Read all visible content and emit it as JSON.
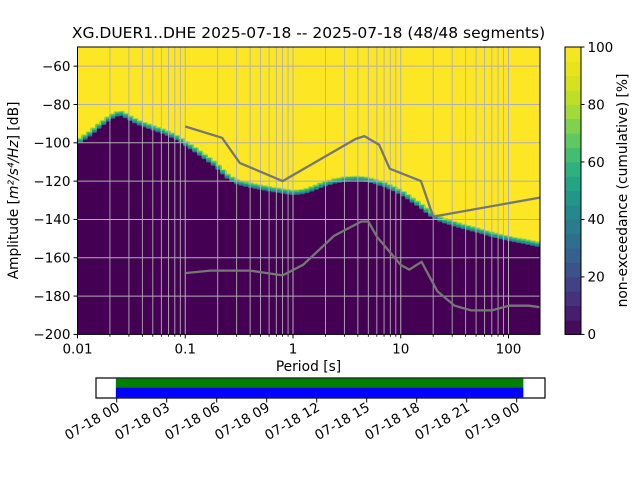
{
  "title": "XG.DUER1..DHE   2025-07-18 -- 2025-07-18  (48/48 segments)",
  "chart_data": {
    "type": "heatmap",
    "xlabel": "Period [s]",
    "ylabel_prefix": "Amplitude [",
    "ylabel_math": "m²/s⁴/Hz",
    "ylabel_suffix": "] [dB]",
    "xscale": "log",
    "xlim": [
      0.01,
      196
    ],
    "ylim": [
      -200,
      -50
    ],
    "x_ticks": [
      0.01,
      0.1,
      1,
      10,
      100
    ],
    "x_tick_labels": [
      "0.01",
      "0.1",
      "1",
      "10",
      "100"
    ],
    "y_ticks": [
      -60,
      -80,
      -100,
      -120,
      -140,
      -160,
      -180,
      -200
    ],
    "y_tick_labels": [
      "−60",
      "−80",
      "−100",
      "−120",
      "−140",
      "−160",
      "−180",
      "−200"
    ],
    "grid": true,
    "colors": {
      "high": "#fde725",
      "low": "#440154",
      "grid": "#b0b0b0",
      "noise_model": "#767676",
      "spine": "#000000",
      "band_blue": "#31688e",
      "band_teal": "#21918c",
      "band_green": "#35b779",
      "band_light": "#a0da39"
    },
    "viridis_stops": [
      [
        0.0,
        "#440154"
      ],
      [
        0.1,
        "#482878"
      ],
      [
        0.2,
        "#3e4a89"
      ],
      [
        0.3,
        "#31688e"
      ],
      [
        0.4,
        "#26828e"
      ],
      [
        0.5,
        "#1f9e89"
      ],
      [
        0.6,
        "#35b779"
      ],
      [
        0.7,
        "#6dcd59"
      ],
      [
        0.8,
        "#b5de2b"
      ],
      [
        0.9,
        "#dfe318"
      ],
      [
        1.0,
        "#fde725"
      ]
    ],
    "colorbar": {
      "label": "non-exceedance (cumulative) [%]",
      "ticks": [
        0,
        20,
        40,
        60,
        80,
        100
      ],
      "tick_labels": [
        "0",
        "20",
        "40",
        "60",
        "80",
        "100"
      ],
      "segments": 20
    },
    "cumulative_boundary_db_by_period": [
      [
        0.01,
        -100.5
      ],
      [
        0.0115,
        -98
      ],
      [
        0.013,
        -96
      ],
      [
        0.015,
        -93
      ],
      [
        0.0175,
        -90
      ],
      [
        0.02,
        -87.5
      ],
      [
        0.0225,
        -86
      ],
      [
        0.025,
        -85.3
      ],
      [
        0.028,
        -86.5
      ],
      [
        0.032,
        -88.5
      ],
      [
        0.038,
        -90.5
      ],
      [
        0.045,
        -92
      ],
      [
        0.055,
        -93.8
      ],
      [
        0.065,
        -95.2
      ],
      [
        0.075,
        -96.8
      ],
      [
        0.085,
        -98.3
      ],
      [
        0.1,
        -101
      ],
      [
        0.115,
        -103.2
      ],
      [
        0.135,
        -106
      ],
      [
        0.16,
        -109
      ],
      [
        0.19,
        -112
      ],
      [
        0.22,
        -115.5
      ],
      [
        0.25,
        -118.5
      ],
      [
        0.29,
        -120.8
      ],
      [
        0.34,
        -122
      ],
      [
        0.42,
        -123.2
      ],
      [
        0.52,
        -124.2
      ],
      [
        0.65,
        -125.2
      ],
      [
        0.8,
        -126
      ],
      [
        1.0,
        -126.8
      ],
      [
        1.25,
        -126.3
      ],
      [
        1.55,
        -124.5
      ],
      [
        1.9,
        -122.5
      ],
      [
        2.4,
        -120.8
      ],
      [
        3.0,
        -119.8
      ],
      [
        3.8,
        -119.4
      ],
      [
        4.7,
        -119.8
      ],
      [
        5.8,
        -121
      ],
      [
        7.2,
        -122.8
      ],
      [
        9.0,
        -125.2
      ],
      [
        11,
        -128
      ],
      [
        13.5,
        -131.5
      ],
      [
        16.5,
        -135
      ],
      [
        20,
        -139
      ],
      [
        24,
        -141
      ],
      [
        30,
        -142.8
      ],
      [
        38,
        -144.5
      ],
      [
        48,
        -146
      ],
      [
        62,
        -147.8
      ],
      [
        80,
        -149.5
      ],
      [
        105,
        -151
      ],
      [
        140,
        -152.3
      ],
      [
        196,
        -154
      ]
    ],
    "noise_models": {
      "nhnm": [
        [
          0.1,
          -91.5
        ],
        [
          0.22,
          -97.4
        ],
        [
          0.32,
          -110.5
        ],
        [
          0.8,
          -120.0
        ],
        [
          3.8,
          -98.0
        ],
        [
          4.6,
          -96.5
        ],
        [
          6.3,
          -101.0
        ],
        [
          7.9,
          -113.5
        ],
        [
          15.4,
          -120.0
        ],
        [
          20.0,
          -138.5
        ],
        [
          196,
          -128.6
        ]
      ],
      "nlnm": [
        [
          0.1,
          -168.0
        ],
        [
          0.17,
          -166.7
        ],
        [
          0.4,
          -166.7
        ],
        [
          0.8,
          -169.2
        ],
        [
          1.24,
          -163.7
        ],
        [
          2.4,
          -148.6
        ],
        [
          4.3,
          -141.1
        ],
        [
          5.0,
          -141.1
        ],
        [
          6.0,
          -149.0
        ],
        [
          10.0,
          -163.8
        ],
        [
          12.0,
          -166.2
        ],
        [
          15.6,
          -162.1
        ],
        [
          21.9,
          -177.5
        ],
        [
          31.6,
          -185.0
        ],
        [
          45.0,
          -187.5
        ],
        [
          70.0,
          -187.5
        ],
        [
          101.0,
          -185.0
        ],
        [
          154.0,
          -185.0
        ],
        [
          196,
          -185.8
        ]
      ]
    }
  },
  "timeline": {
    "tick_labels": [
      "07-18 00",
      "07-18 03",
      "07-18 06",
      "07-18 09",
      "07-18 12",
      "07-18 15",
      "07-18 18",
      "07-18 21",
      "07-19 00"
    ],
    "hours_span": 24,
    "coverage": {
      "start_hour": -0.05,
      "end_hour": 24.4
    },
    "colors": {
      "top": "#008000",
      "bottom": "#0000ff",
      "background": "#ffffff",
      "frame": "#000000"
    }
  }
}
